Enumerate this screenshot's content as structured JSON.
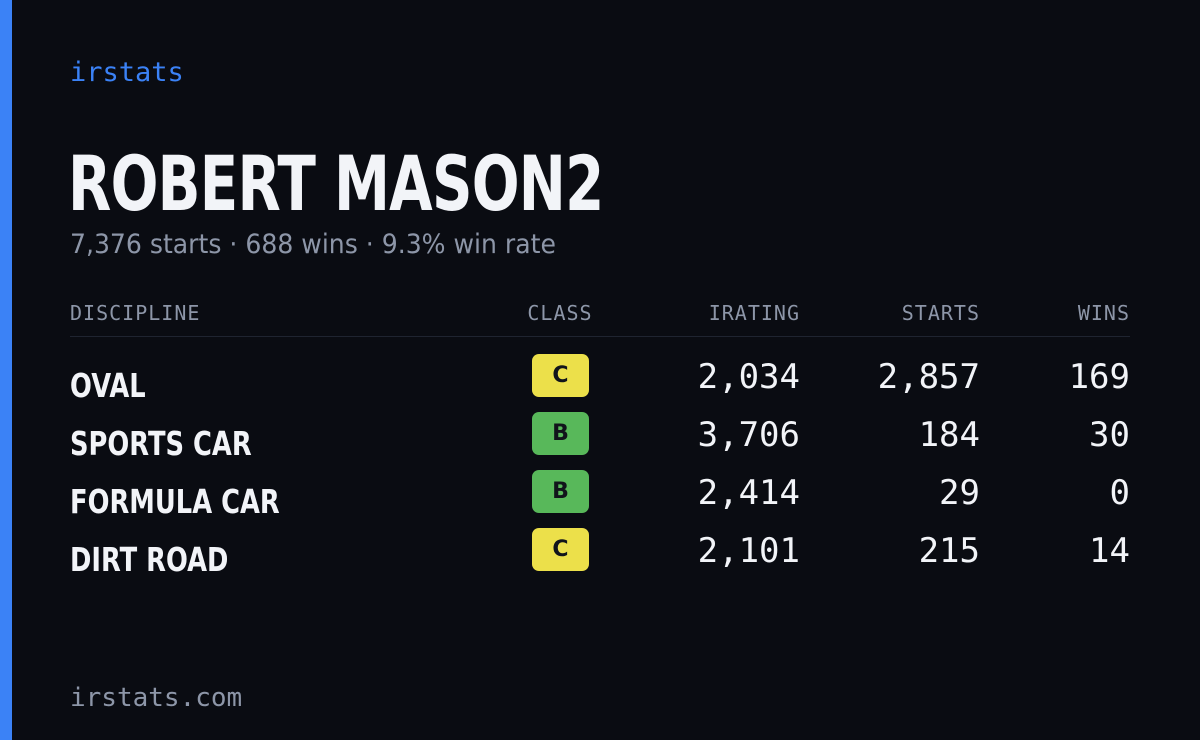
{
  "brand": "irstats",
  "profile": {
    "name": "ROBERT MASON2",
    "summary": "7,376 starts · 688 wins · 9.3% win rate"
  },
  "table": {
    "headers": {
      "discipline": "DISCIPLINE",
      "class": "CLASS",
      "irating": "IRATING",
      "starts": "STARTS",
      "wins": "WINS"
    },
    "rows": [
      {
        "discipline": "OVAL",
        "class": "C",
        "irating": "2,034",
        "starts": "2,857",
        "wins": "169",
        "class_color": "#ece04a"
      },
      {
        "discipline": "SPORTS CAR",
        "class": "B",
        "irating": "3,706",
        "starts": "184",
        "wins": "30",
        "class_color": "#58b85a"
      },
      {
        "discipline": "FORMULA CAR",
        "class": "B",
        "irating": "2,414",
        "starts": "29",
        "wins": "0",
        "class_color": "#58b85a"
      },
      {
        "discipline": "DIRT ROAD",
        "class": "C",
        "irating": "2,101",
        "starts": "215",
        "wins": "14",
        "class_color": "#ece04a"
      }
    ]
  },
  "footer": {
    "url": "irstats.com"
  },
  "colors": {
    "background": "#0a0c12",
    "accent": "#3b82f6",
    "text_primary": "#f2f4f8",
    "text_muted": "#8d96a8"
  }
}
